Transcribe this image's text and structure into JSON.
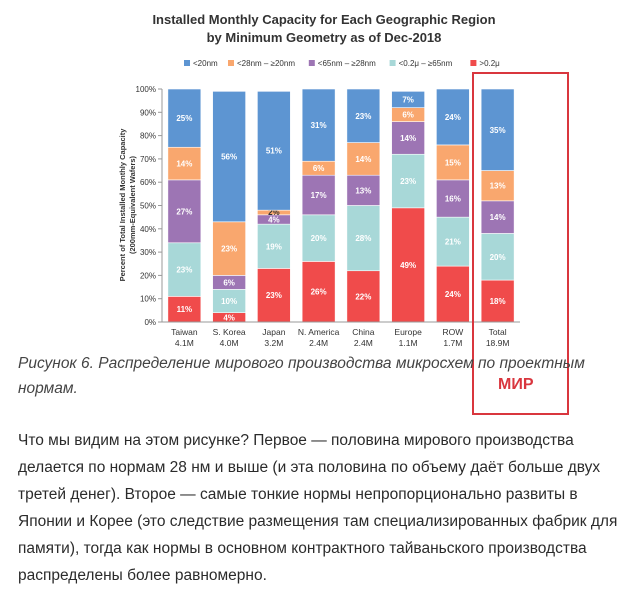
{
  "chart_data": {
    "type": "bar",
    "stacked": true,
    "normalized_percent": true,
    "title_line1": "Installed Monthly Capacity for Each Geographic Region",
    "title_line2": "by Minimum Geometry as of Dec-2018",
    "ylabel_line1": "Percent of Total Installed Monthly Capacity",
    "ylabel_line2": "(200mm-Equivalent Wafers)",
    "ylim": [
      0,
      100
    ],
    "yticks": [
      "0%",
      "10%",
      "20%",
      "30%",
      "40%",
      "50%",
      "60%",
      "70%",
      "80%",
      "90%",
      "100%"
    ],
    "legend_placement": "top",
    "categories": [
      "Taiwan",
      "S. Korea",
      "Japan",
      "N. America",
      "China",
      "Europe",
      "ROW",
      "Total"
    ],
    "category_totals": [
      "4.1M",
      "4.0M",
      "3.2M",
      "2.4M",
      "2.4M",
      "1.1M",
      "1.7M",
      "18.9M"
    ],
    "series": [
      {
        "name": ">0.2μ",
        "color": "#f04b4b",
        "values": [
          11,
          4,
          23,
          26,
          22,
          49,
          24,
          18
        ],
        "labels": [
          "11%",
          "4%",
          "23%",
          "26%",
          "22%",
          "49%",
          "24%",
          "18%"
        ]
      },
      {
        "name": "<0.2μ – ≥65nm",
        "color": "#a8d8d8",
        "values": [
          23,
          10,
          19,
          20,
          28,
          23,
          21,
          20
        ],
        "labels": [
          "23%",
          "10%",
          "19%",
          "20%",
          "28%",
          "23%",
          "21%",
          "20%"
        ]
      },
      {
        "name": "<65nm – ≥28nm",
        "color": "#9d75b4",
        "values": [
          27,
          6,
          4,
          17,
          13,
          14,
          16,
          14
        ],
        "labels": [
          "27%",
          "6%",
          "4%",
          "17%",
          "13%",
          "14%",
          "16%",
          "14%"
        ]
      },
      {
        "name": "<28nm – ≥20nm",
        "color": "#f9a76e",
        "values": [
          14,
          23,
          2,
          6,
          14,
          6,
          15,
          13
        ],
        "labels": [
          "14%",
          "23%",
          "2%",
          "6%",
          "14%",
          "6%",
          "15%",
          "13%"
        ]
      },
      {
        "name": "<20nm",
        "color": "#5d95d2",
        "values": [
          25,
          56,
          51,
          31,
          23,
          7,
          24,
          35
        ],
        "labels": [
          "25%",
          "56%",
          "51%",
          "31%",
          "23%",
          "7%",
          "24%",
          "35%"
        ]
      }
    ],
    "legend_order": [
      "<20nm",
      "<28nm – ≥20nm",
      "<65nm – ≥28nm",
      "<0.2μ – ≥65nm",
      ">0.2μ"
    ]
  },
  "caption": "Рисунок 6. Распределение мирового производства микросхем по проектным нормам.",
  "world_label": "МИР",
  "article_text": "Что мы видим на этом рисунке? Первое — половина мирового производства делается по нормам 28 нм и выше (и эта половина по объему даёт больше двух третей денег). Второе — самые тонкие нормы непропорционально развиты в Японии и Корее (это следствие размещения там специализированных фабрик для памяти), тогда как нормы в основном контрактного тайваньского производства распределены более равномерно.",
  "highlight_color": "#d9363e"
}
